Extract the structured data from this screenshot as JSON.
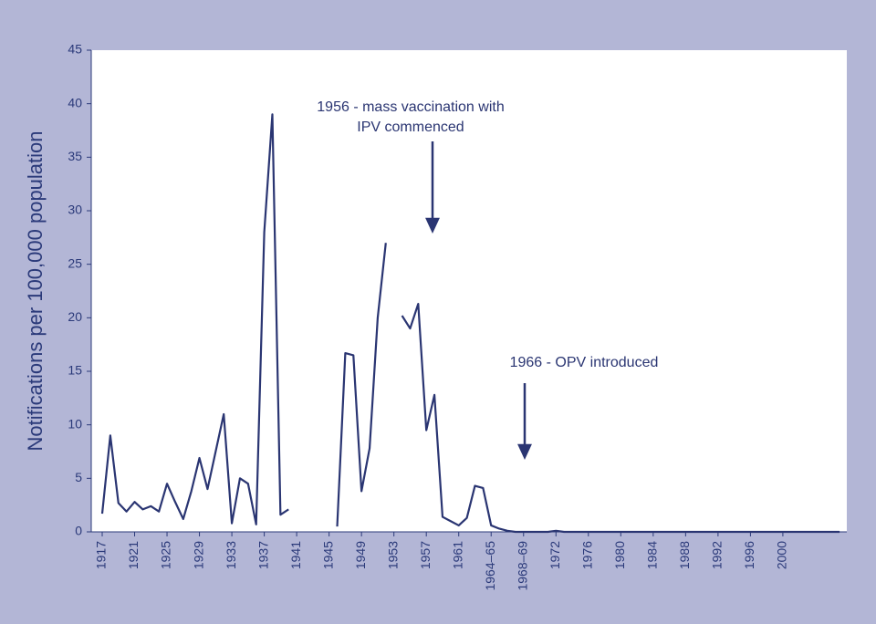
{
  "chart_data": {
    "type": "line",
    "y_label": "Notifications per 100,000 population",
    "categories": [
      "1917",
      null,
      null,
      null,
      "1921",
      null,
      null,
      null,
      "1925",
      null,
      null,
      null,
      "1929",
      null,
      null,
      null,
      "1933",
      null,
      null,
      null,
      "1937",
      null,
      null,
      null,
      "1941",
      null,
      null,
      null,
      "1945",
      null,
      null,
      null,
      "1949",
      null,
      null,
      null,
      "1953",
      null,
      null,
      null,
      "1957",
      null,
      null,
      null,
      "1961",
      null,
      null,
      null,
      "1964–65",
      null,
      null,
      null,
      "1968–69",
      null,
      null,
      null,
      "1972",
      null,
      null,
      null,
      "1976",
      null,
      null,
      null,
      "1980",
      null,
      null,
      null,
      "1984",
      null,
      null,
      null,
      "1988",
      null,
      null,
      null,
      "1992",
      null,
      null,
      null,
      "1996",
      null,
      null,
      null,
      "2000",
      null,
      null,
      null,
      null,
      null,
      null,
      null
    ],
    "series": [
      {
        "name": "Notifications",
        "color": "#2a3572",
        "values": [
          1.7,
          9.0,
          2.7,
          1.9,
          2.8,
          2.1,
          2.4,
          1.9,
          4.5,
          2.8,
          1.2,
          3.8,
          6.9,
          4.0,
          7.5,
          11.0,
          0.8,
          5.0,
          4.5,
          0.7,
          28,
          39,
          1.6,
          2.1,
          null,
          null,
          null,
          null,
          null,
          0.5,
          16.7,
          16.5,
          3.8,
          7.8,
          20,
          27,
          null,
          20.2,
          19,
          21.3,
          9.5,
          12.8,
          1.4,
          1.0,
          0.6,
          1.3,
          4.3,
          4.1,
          0.6,
          0.3,
          0.1,
          0,
          0,
          0,
          0,
          0,
          0.1,
          0,
          0,
          0,
          0,
          0,
          0,
          0,
          0,
          0,
          0,
          0,
          0,
          0,
          0,
          0,
          0,
          0,
          0,
          0,
          0,
          0,
          0,
          0,
          0,
          0,
          0,
          0,
          0,
          0,
          0,
          0,
          0,
          0,
          0,
          0
        ]
      }
    ],
    "ylim": [
      0,
      45
    ],
    "yticks": [
      0,
      5,
      10,
      15,
      20,
      25,
      30,
      35,
      40,
      45
    ],
    "annotations": [
      {
        "text": [
          "1956 - mass vaccination with",
          "IPV commenced"
        ]
      },
      {
        "text": [
          "1966 - OPV introduced"
        ]
      }
    ]
  }
}
